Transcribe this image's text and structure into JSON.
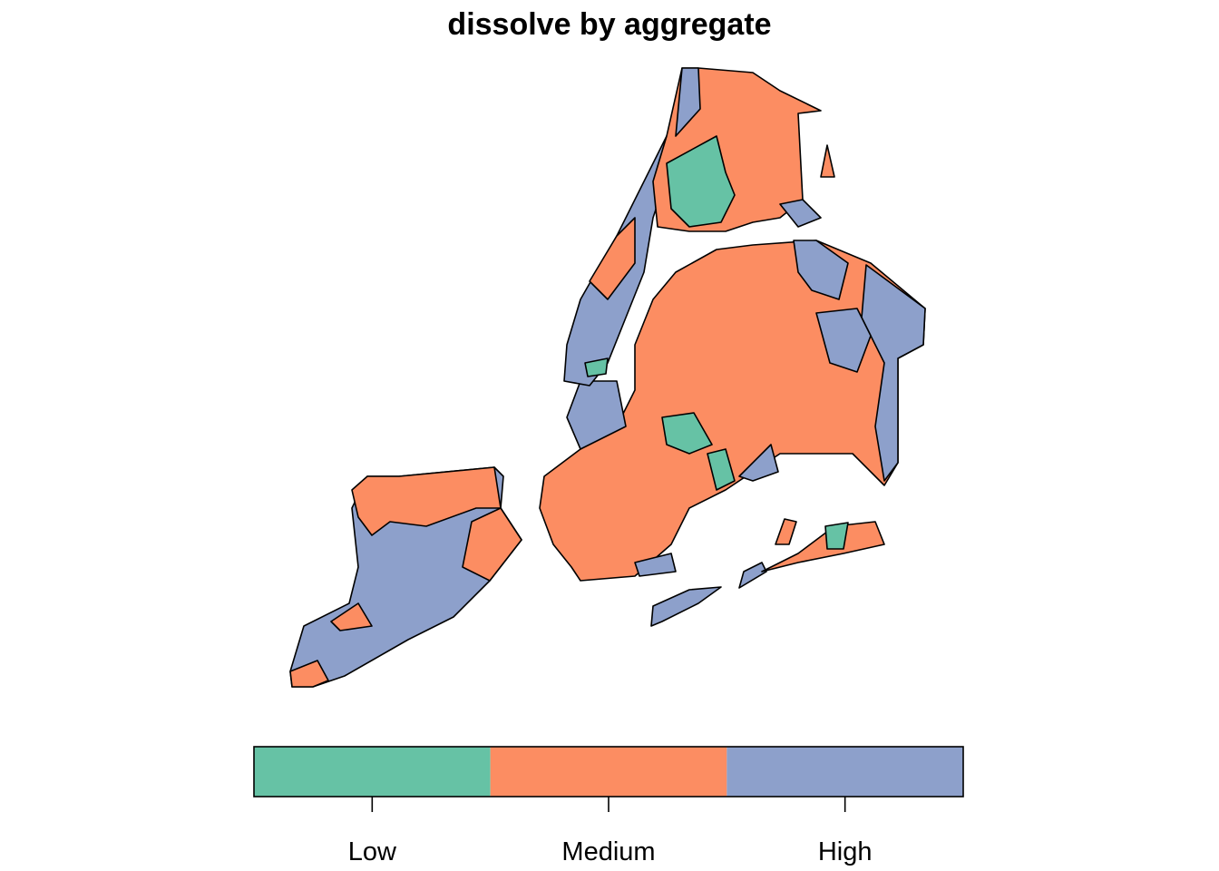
{
  "title": "dissolve by aggregate",
  "legend": {
    "items": [
      {
        "label": "Low",
        "color": "#66c2a5"
      },
      {
        "label": "Medium",
        "color": "#fc8d62"
      },
      {
        "label": "High",
        "color": "#8da0cb"
      }
    ]
  }
}
